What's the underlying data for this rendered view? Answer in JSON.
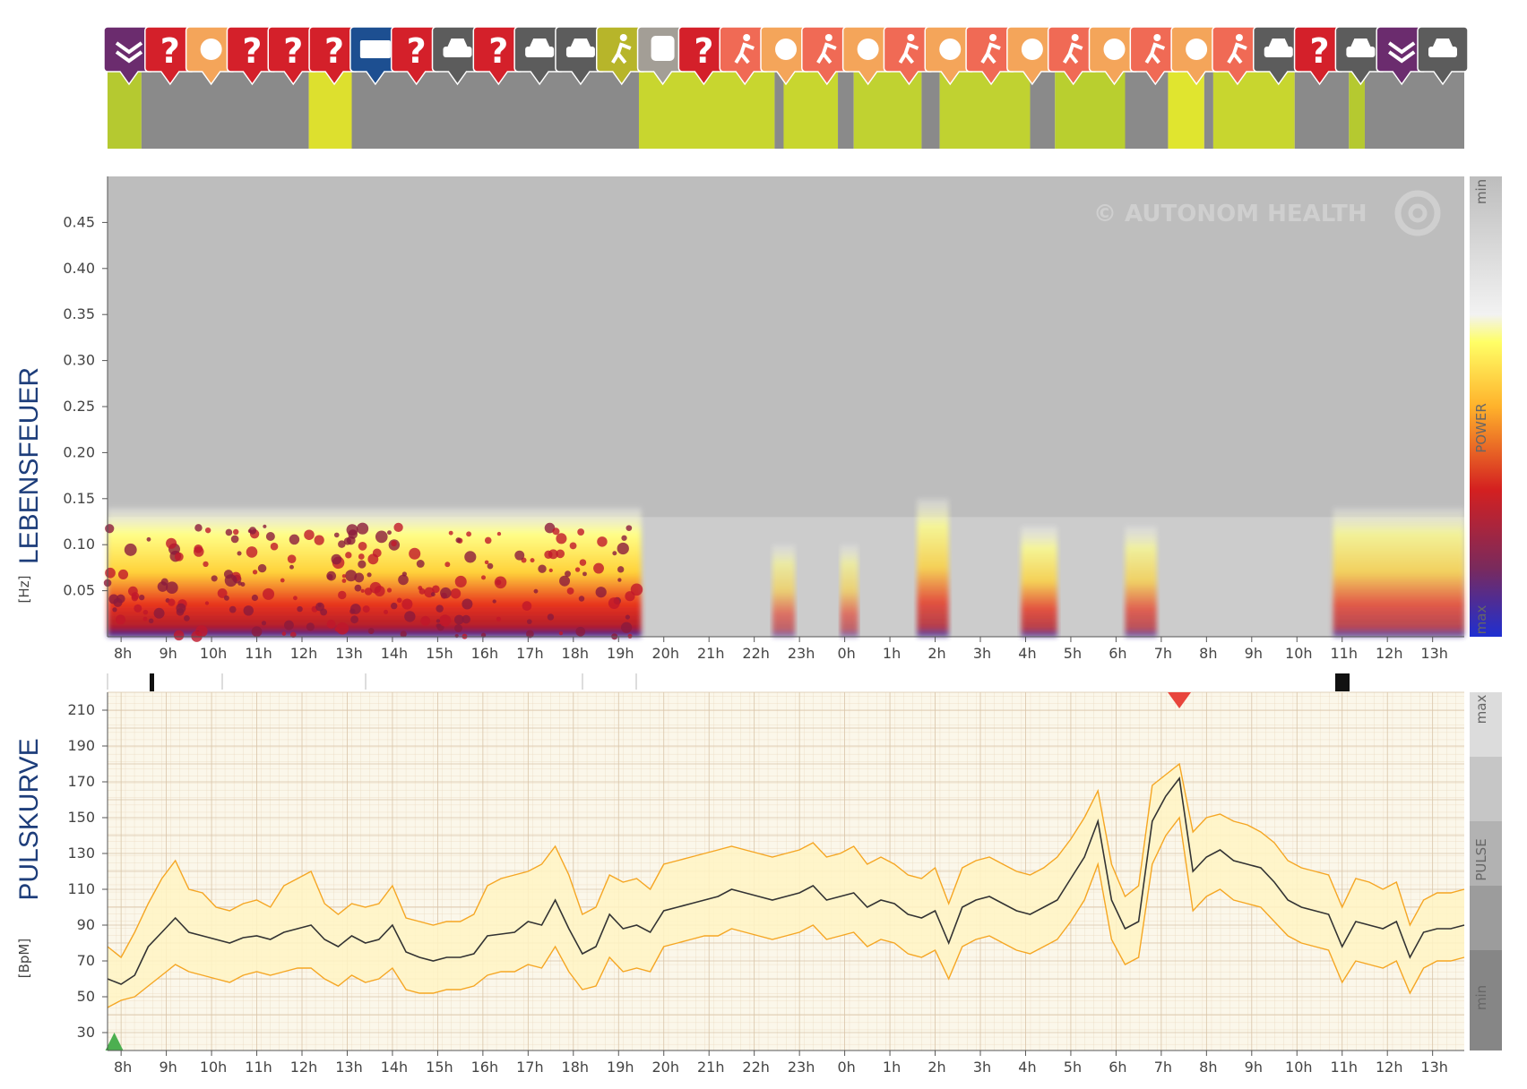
{
  "watermark": "© AUTONOM HEALTH",
  "activity_icons": [
    {
      "type": "sleep-icon",
      "color": "#6b2c6e"
    },
    {
      "type": "unknown-icon",
      "glyph": "?",
      "color": "#d4202a"
    },
    {
      "type": "meal-icon",
      "color": "#f4a55a"
    },
    {
      "type": "unknown-icon",
      "glyph": "?",
      "color": "#d4202a"
    },
    {
      "type": "unknown-icon",
      "glyph": "?",
      "color": "#d4202a"
    },
    {
      "type": "unknown-icon",
      "glyph": "?",
      "color": "#d4202a"
    },
    {
      "type": "keyboard-icon",
      "color": "#1d4f91"
    },
    {
      "type": "unknown-icon",
      "glyph": "?",
      "color": "#d4202a"
    },
    {
      "type": "car-icon",
      "color": "#5c5c5c"
    },
    {
      "type": "unknown-icon",
      "glyph": "?",
      "color": "#d4202a"
    },
    {
      "type": "car-icon",
      "color": "#5c5c5c"
    },
    {
      "type": "car-icon",
      "color": "#5c5c5c"
    },
    {
      "type": "walk-icon",
      "color": "#b7b52a"
    },
    {
      "type": "bus-icon",
      "color": "#a39e96"
    },
    {
      "type": "unknown-icon",
      "glyph": "?",
      "color": "#d4202a"
    },
    {
      "type": "sport-icon",
      "color": "#f06a55"
    },
    {
      "type": "meal-icon",
      "color": "#f4a55a"
    },
    {
      "type": "sport-icon",
      "color": "#f06a55"
    },
    {
      "type": "meal-icon",
      "color": "#f4a55a"
    },
    {
      "type": "sport-icon",
      "color": "#f06a55"
    },
    {
      "type": "meal-icon",
      "color": "#f4a55a"
    },
    {
      "type": "sport-icon",
      "color": "#f06a55"
    },
    {
      "type": "meal-icon",
      "color": "#f4a55a"
    },
    {
      "type": "sport-icon",
      "color": "#f06a55"
    },
    {
      "type": "meal-icon",
      "color": "#f4a55a"
    },
    {
      "type": "sport-icon",
      "color": "#f06a55"
    },
    {
      "type": "meal-icon",
      "color": "#f4a55a"
    },
    {
      "type": "sport-icon",
      "color": "#f06a55"
    },
    {
      "type": "car-icon",
      "color": "#5c5c5c"
    },
    {
      "type": "unknown-icon",
      "glyph": "?",
      "color": "#d4202a"
    },
    {
      "type": "car-icon",
      "color": "#5c5c5c"
    },
    {
      "type": "sleep-icon",
      "color": "#6b2c6e"
    },
    {
      "type": "car-icon",
      "color": "#5c5c5c"
    }
  ],
  "activity_segments": [
    {
      "from": 7.7,
      "to": 8.45,
      "color": "#b5c930"
    },
    {
      "from": 8.45,
      "to": 12.15,
      "color": "#8a8a8a"
    },
    {
      "from": 12.15,
      "to": 13.1,
      "color": "#dde02e"
    },
    {
      "from": 13.1,
      "to": 19.45,
      "color": "#8a8a8a"
    },
    {
      "from": 19.45,
      "to": 22.45,
      "color": "#c8d62f"
    },
    {
      "from": 22.45,
      "to": 22.65,
      "color": "#8a8a8a"
    },
    {
      "from": 22.65,
      "to": 23.85,
      "color": "#c8d62f"
    },
    {
      "from": 23.85,
      "to": 24.2,
      "color": "#8a8a8a"
    },
    {
      "from": 24.2,
      "to": 25.7,
      "color": "#c0d231"
    },
    {
      "from": 25.7,
      "to": 26.1,
      "color": "#8a8a8a"
    },
    {
      "from": 26.1,
      "to": 28.1,
      "color": "#c0d231"
    },
    {
      "from": 28.1,
      "to": 28.65,
      "color": "#8a8a8a"
    },
    {
      "from": 28.65,
      "to": 30.2,
      "color": "#b9cf2f"
    },
    {
      "from": 30.2,
      "to": 31.15,
      "color": "#8a8a8a"
    },
    {
      "from": 31.15,
      "to": 31.95,
      "color": "#e0e52f"
    },
    {
      "from": 31.95,
      "to": 32.15,
      "color": "#8a8a8a"
    },
    {
      "from": 32.15,
      "to": 33.95,
      "color": "#c8d62f"
    },
    {
      "from": 33.95,
      "to": 35.15,
      "color": "#8a8a8a"
    },
    {
      "from": 35.15,
      "to": 35.5,
      "color": "#b5c930"
    },
    {
      "from": 35.5,
      "to": 37.7,
      "color": "#8a8a8a"
    }
  ],
  "chart_data": [
    {
      "type": "heatmap",
      "side_title": "LEBENSFEUER",
      "ylabel": "[Hz]",
      "yticks": [
        0.05,
        0.1,
        0.15,
        0.2,
        0.25,
        0.3,
        0.35,
        0.4,
        0.45
      ],
      "ylim": [
        0,
        0.5
      ],
      "xticks": [
        "8h",
        "9h",
        "10h",
        "11h",
        "12h",
        "13h",
        "14h",
        "15h",
        "16h",
        "17h",
        "18h",
        "19h",
        "20h",
        "21h",
        "22h",
        "23h",
        "0h",
        "1h",
        "2h",
        "3h",
        "4h",
        "5h",
        "6h",
        "7h",
        "8h",
        "9h",
        "10h",
        "11h",
        "12h",
        "13h"
      ],
      "colorbar": {
        "label": "POWER",
        "min_label": "min",
        "max_label": "max"
      },
      "high_activity_bands": [
        {
          "from": 7.7,
          "to": 19.5,
          "height_hz": 0.14,
          "intensity": 1.0
        },
        {
          "from": 22.4,
          "to": 22.9,
          "height_hz": 0.1,
          "intensity": 0.6
        },
        {
          "from": 23.9,
          "to": 24.3,
          "height_hz": 0.1,
          "intensity": 0.6
        },
        {
          "from": 25.6,
          "to": 26.3,
          "height_hz": 0.15,
          "intensity": 0.8
        },
        {
          "from": 27.9,
          "to": 28.7,
          "height_hz": 0.12,
          "intensity": 0.8
        },
        {
          "from": 30.2,
          "to": 30.9,
          "height_hz": 0.12,
          "intensity": 0.7
        },
        {
          "from": 34.8,
          "to": 37.7,
          "height_hz": 0.14,
          "intensity": 0.75
        }
      ]
    },
    {
      "type": "line",
      "side_title": "PULSKURVE",
      "ylabel": "[BpM]",
      "yticks": [
        30,
        50,
        70,
        90,
        110,
        130,
        150,
        170,
        190,
        210
      ],
      "ylim": [
        20,
        220
      ],
      "xticks": [
        "8h",
        "9h",
        "10h",
        "11h",
        "12h",
        "13h",
        "14h",
        "15h",
        "16h",
        "17h",
        "18h",
        "19h",
        "20h",
        "21h",
        "22h",
        "23h",
        "0h",
        "1h",
        "2h",
        "3h",
        "4h",
        "5h",
        "6h",
        "7h",
        "8h",
        "9h",
        "10h",
        "11h",
        "12h",
        "13h"
      ],
      "colorbar": {
        "label": "PULSE",
        "min_label": "min",
        "max_label": "max"
      },
      "x": [
        7.7,
        8.0,
        8.3,
        8.6,
        8.9,
        9.2,
        9.5,
        9.8,
        10.1,
        10.4,
        10.7,
        11.0,
        11.3,
        11.6,
        11.9,
        12.2,
        12.5,
        12.8,
        13.1,
        13.4,
        13.7,
        14.0,
        14.3,
        14.6,
        14.9,
        15.2,
        15.5,
        15.8,
        16.1,
        16.4,
        16.7,
        17.0,
        17.3,
        17.6,
        17.9,
        18.2,
        18.5,
        18.8,
        19.1,
        19.4,
        19.7,
        20.0,
        20.3,
        20.6,
        20.9,
        21.2,
        21.5,
        21.8,
        22.1,
        22.4,
        22.7,
        23.0,
        23.3,
        23.6,
        23.9,
        24.2,
        24.5,
        24.8,
        25.1,
        25.4,
        25.7,
        26.0,
        26.3,
        26.6,
        26.9,
        27.2,
        27.5,
        27.8,
        28.1,
        28.4,
        28.7,
        29.0,
        29.3,
        29.6,
        29.9,
        30.2,
        30.5,
        30.8,
        31.1,
        31.4,
        31.7,
        32.0,
        32.3,
        32.6,
        32.9,
        33.2,
        33.5,
        33.8,
        34.1,
        34.4,
        34.7,
        35.0,
        35.3,
        35.6,
        35.9,
        36.2,
        36.5,
        36.8,
        37.1,
        37.4,
        37.7
      ],
      "series": [
        {
          "color": "#333333",
          "values": [
            60,
            57,
            62,
            78,
            86,
            94,
            86,
            84,
            82,
            80,
            83,
            84,
            82,
            86,
            88,
            90,
            82,
            78,
            84,
            80,
            82,
            90,
            75,
            72,
            70,
            72,
            72,
            74,
            84,
            85,
            86,
            92,
            90,
            104,
            88,
            74,
            78,
            96,
            88,
            90,
            86,
            98,
            100,
            102,
            104,
            106,
            110,
            108,
            106,
            104,
            106,
            108,
            112,
            104,
            106,
            108,
            100,
            104,
            102,
            96,
            94,
            98,
            80,
            100,
            104,
            106,
            102,
            98,
            96,
            100,
            104,
            116,
            128,
            148,
            104,
            88,
            92,
            148,
            162,
            172,
            120,
            128,
            132,
            126,
            124,
            122,
            114,
            104,
            100,
            98,
            96,
            78,
            92,
            90,
            88,
            92,
            72,
            86,
            88,
            88,
            90
          ]
        },
        {
          "color": "#f5a623",
          "values": [
            78,
            72,
            86,
            102,
            116,
            126,
            110,
            108,
            100,
            98,
            102,
            104,
            100,
            112,
            116,
            120,
            102,
            96,
            102,
            100,
            102,
            112,
            94,
            92,
            90,
            92,
            92,
            96,
            112,
            116,
            118,
            120,
            124,
            134,
            118,
            96,
            100,
            118,
            114,
            116,
            110,
            124,
            126,
            128,
            130,
            132,
            134,
            132,
            130,
            128,
            130,
            132,
            136,
            128,
            130,
            134,
            124,
            128,
            124,
            118,
            116,
            122,
            102,
            122,
            126,
            128,
            124,
            120,
            118,
            122,
            128,
            138,
            150,
            165,
            124,
            106,
            112,
            168,
            174,
            180,
            142,
            150,
            152,
            148,
            146,
            142,
            136,
            126,
            122,
            120,
            118,
            100,
            116,
            114,
            110,
            114,
            90,
            104,
            108,
            108,
            110
          ]
        },
        {
          "color": "#f5a623",
          "values": [
            44,
            48,
            50,
            56,
            62,
            68,
            64,
            62,
            60,
            58,
            62,
            64,
            62,
            64,
            66,
            66,
            60,
            56,
            62,
            58,
            60,
            66,
            54,
            52,
            52,
            54,
            54,
            56,
            62,
            64,
            64,
            68,
            66,
            78,
            64,
            54,
            56,
            72,
            64,
            66,
            64,
            78,
            80,
            82,
            84,
            84,
            88,
            86,
            84,
            82,
            84,
            86,
            90,
            82,
            84,
            86,
            78,
            82,
            80,
            74,
            72,
            76,
            60,
            78,
            82,
            84,
            80,
            76,
            74,
            78,
            82,
            92,
            104,
            124,
            82,
            68,
            72,
            124,
            140,
            150,
            98,
            106,
            110,
            104,
            102,
            100,
            92,
            84,
            80,
            78,
            76,
            58,
            70,
            68,
            66,
            70,
            52,
            66,
            70,
            70,
            72
          ]
        }
      ],
      "markers": [
        {
          "x": 7.85,
          "y": 20,
          "color": "#4caf50",
          "shape": "up-triangle"
        },
        {
          "x": 31.4,
          "y": 220,
          "color": "#e8453c",
          "shape": "down-triangle"
        }
      ]
    }
  ]
}
